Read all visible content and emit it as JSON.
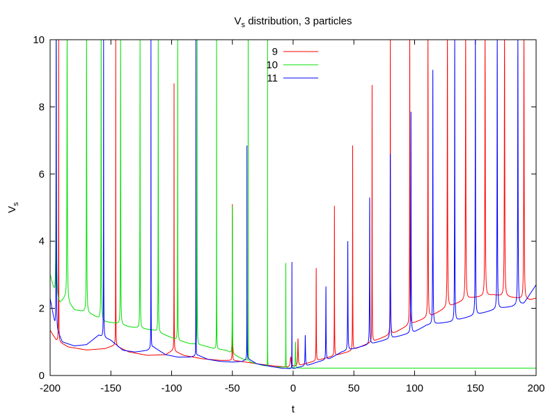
{
  "chart_data": {
    "type": "line",
    "title": {
      "main": "V",
      "sub": "s",
      "rest": " distribution, 3 particles"
    },
    "xlabel": "t",
    "ylabel": {
      "main": "V",
      "sub": "s"
    },
    "xlim": [
      -200,
      200
    ],
    "ylim": [
      0,
      10
    ],
    "xticks": [
      -200,
      -150,
      -100,
      -50,
      0,
      50,
      100,
      150,
      200
    ],
    "yticks": [
      0,
      2,
      4,
      6,
      8,
      10
    ],
    "legend_position": "top-center",
    "series": [
      {
        "name": "9",
        "color": "#ff0000",
        "base_points": [
          [
            -200,
            1.35
          ],
          [
            -195,
            1.05
          ],
          [
            -185,
            0.85
          ],
          [
            -170,
            0.76
          ],
          [
            -155,
            0.8
          ],
          [
            -147,
            0.9
          ],
          [
            -135,
            0.7
          ],
          [
            -120,
            0.6
          ],
          [
            -105,
            0.62
          ],
          [
            -99,
            0.75
          ],
          [
            -90,
            0.6
          ],
          [
            -75,
            0.5
          ],
          [
            -60,
            0.45
          ],
          [
            -50,
            0.45
          ],
          [
            -45,
            0.43
          ],
          [
            -30,
            0.35
          ],
          [
            -15,
            0.28
          ],
          [
            -5,
            0.25
          ],
          [
            5,
            0.3
          ],
          [
            15,
            0.4
          ],
          [
            25,
            0.5
          ],
          [
            35,
            0.6
          ],
          [
            45,
            0.7
          ],
          [
            55,
            0.85
          ],
          [
            65,
            1.0
          ],
          [
            75,
            1.15
          ],
          [
            85,
            1.3
          ],
          [
            95,
            1.5
          ],
          [
            105,
            1.65
          ],
          [
            115,
            1.8
          ],
          [
            125,
            2.0
          ],
          [
            135,
            2.15
          ],
          [
            145,
            2.3
          ],
          [
            155,
            2.35
          ],
          [
            165,
            2.4
          ],
          [
            175,
            2.35
          ],
          [
            185,
            2.3
          ],
          [
            195,
            2.25
          ],
          [
            200,
            2.3
          ]
        ],
        "spikes": [
          [
            -193,
            10
          ],
          [
            -146,
            10
          ],
          [
            -98,
            8.7
          ],
          [
            -50,
            5.1
          ],
          [
            -2,
            0.55
          ],
          [
            4,
            1.1
          ],
          [
            19,
            3.2
          ],
          [
            34,
            5.05
          ],
          [
            49,
            6.85
          ],
          [
            65,
            8.65
          ],
          [
            80,
            10
          ],
          [
            96,
            10
          ],
          [
            111,
            10
          ],
          [
            127,
            10
          ],
          [
            142,
            10
          ],
          [
            158,
            10
          ],
          [
            174,
            10
          ],
          [
            190,
            10
          ]
        ]
      },
      {
        "name": "10",
        "color": "#00e000",
        "base_points": [
          [
            -200,
            3.0
          ],
          [
            -196,
            2.4
          ],
          [
            -192,
            2.15
          ],
          [
            -188,
            2.3
          ],
          [
            -180,
            1.95
          ],
          [
            -172,
            1.9
          ],
          [
            -165,
            1.8
          ],
          [
            -155,
            1.6
          ],
          [
            -145,
            1.55
          ],
          [
            -135,
            1.45
          ],
          [
            -125,
            1.4
          ],
          [
            -115,
            1.35
          ],
          [
            -105,
            1.2
          ],
          [
            -95,
            1.05
          ],
          [
            -85,
            0.95
          ],
          [
            -75,
            0.9
          ],
          [
            -65,
            0.8
          ],
          [
            -55,
            0.75
          ],
          [
            -45,
            0.55
          ],
          [
            -35,
            0.4
          ],
          [
            -25,
            0.3
          ],
          [
            -15,
            0.25
          ],
          [
            -8,
            0.25
          ],
          [
            -5,
            0.22
          ],
          [
            0,
            0.22
          ],
          [
            200,
            0.22
          ]
        ],
        "spikes": [
          [
            -195,
            10
          ],
          [
            -186,
            10
          ],
          [
            -170,
            10
          ],
          [
            -158,
            10
          ],
          [
            -142,
            10
          ],
          [
            -126,
            10
          ],
          [
            -111,
            10
          ],
          [
            -95,
            10
          ],
          [
            -79,
            10
          ],
          [
            -63,
            10
          ],
          [
            -50,
            5.05
          ],
          [
            -37,
            10
          ],
          [
            -21,
            10
          ],
          [
            -6,
            3.35
          ],
          [
            2,
            1.0
          ]
        ]
      },
      {
        "name": "11",
        "color": "#0000ff",
        "base_points": [
          [
            -200,
            2.3
          ],
          [
            -196,
            1.5
          ],
          [
            -190,
            1.0
          ],
          [
            -180,
            0.88
          ],
          [
            -170,
            0.92
          ],
          [
            -160,
            1.2
          ],
          [
            -150,
            1.05
          ],
          [
            -140,
            0.75
          ],
          [
            -130,
            0.7
          ],
          [
            -120,
            0.75
          ],
          [
            -115,
            0.85
          ],
          [
            -105,
            0.62
          ],
          [
            -95,
            0.55
          ],
          [
            -85,
            0.55
          ],
          [
            -78,
            0.6
          ],
          [
            -70,
            0.48
          ],
          [
            -60,
            0.42
          ],
          [
            -50,
            0.4
          ],
          [
            -42,
            0.42
          ],
          [
            -37,
            0.5
          ],
          [
            -30,
            0.35
          ],
          [
            -20,
            0.28
          ],
          [
            -10,
            0.22
          ],
          [
            0,
            0.2
          ],
          [
            5,
            0.25
          ],
          [
            12,
            0.3
          ],
          [
            20,
            0.4
          ],
          [
            30,
            0.5
          ],
          [
            40,
            0.7
          ],
          [
            50,
            0.8
          ],
          [
            60,
            0.9
          ],
          [
            70,
            1.0
          ],
          [
            80,
            1.1
          ],
          [
            90,
            1.2
          ],
          [
            100,
            1.3
          ],
          [
            110,
            1.5
          ],
          [
            120,
            1.55
          ],
          [
            130,
            1.6
          ],
          [
            140,
            1.7
          ],
          [
            150,
            1.8
          ],
          [
            160,
            1.9
          ],
          [
            170,
            2.0
          ],
          [
            180,
            2.05
          ],
          [
            190,
            2.15
          ],
          [
            200,
            2.7
          ]
        ],
        "spikes": [
          [
            -195,
            10
          ],
          [
            -156,
            10
          ],
          [
            -117,
            10
          ],
          [
            -80,
            10
          ],
          [
            -38,
            6.85
          ],
          [
            -1,
            3.38
          ],
          [
            10,
            1.2
          ],
          [
            27,
            2.65
          ],
          [
            45,
            4.0
          ],
          [
            63,
            5.3
          ],
          [
            80,
            6.6
          ],
          [
            97,
            7.85
          ],
          [
            115,
            9.1
          ],
          [
            133,
            10
          ],
          [
            150,
            10
          ],
          [
            168,
            10
          ],
          [
            185,
            10
          ]
        ]
      }
    ]
  }
}
